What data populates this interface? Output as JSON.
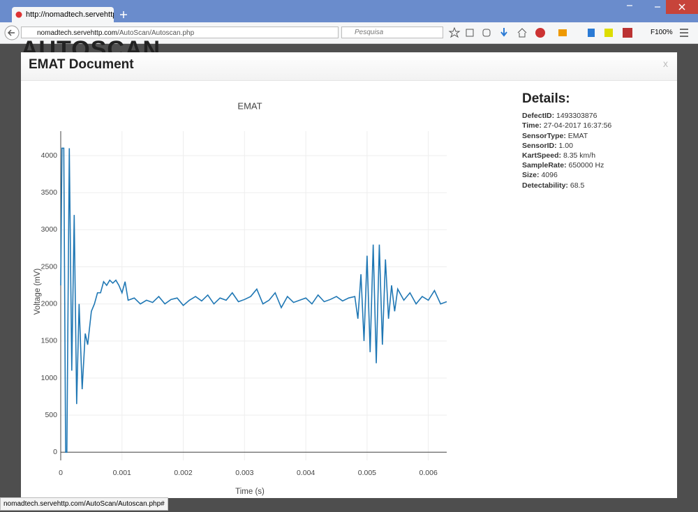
{
  "browser": {
    "tab_title": "http://nomadtech.servehttp.c",
    "url_host": "nomadtech.servehttp.com",
    "url_path": "/AutoScan/Autoscan.php",
    "search_placeholder": "Pesquisa",
    "zoom": "F100%",
    "status": "nomadtech.servehttp.com/AutoScan/Autoscan.php#"
  },
  "background": {
    "logo": "AUTOSCAN"
  },
  "modal": {
    "title": "EMAT Document",
    "close": "x"
  },
  "chart_data": {
    "type": "line",
    "title": "EMAT",
    "x_label": "Time (s)",
    "y_label": "Voltage (mV)",
    "color": "#1f77b4",
    "grid": true,
    "xlim": [
      0,
      0.0063
    ],
    "ylim": [
      -110,
      4330
    ],
    "xticks": [
      0,
      0.001,
      0.002,
      0.003,
      0.004,
      0.005,
      0.006
    ],
    "yticks": [
      0,
      500,
      1000,
      1500,
      2000,
      2500,
      3000,
      3500,
      4000
    ],
    "x": [
      0,
      2e-05,
      5e-05,
      8e-05,
      0.0001,
      0.00014,
      0.00018,
      0.00022,
      0.00026,
      0.0003,
      0.00035,
      0.0004,
      0.00044,
      0.0005,
      0.00055,
      0.0006,
      0.00065,
      0.0007,
      0.00075,
      0.0008,
      0.00085,
      0.0009,
      0.00095,
      0.001,
      0.00105,
      0.0011,
      0.0012,
      0.0013,
      0.0014,
      0.0015,
      0.0016,
      0.0017,
      0.0018,
      0.0019,
      0.002,
      0.0021,
      0.0022,
      0.0023,
      0.0024,
      0.0025,
      0.0026,
      0.0027,
      0.0028,
      0.0029,
      0.003,
      0.0031,
      0.0032,
      0.0033,
      0.0034,
      0.0035,
      0.0036,
      0.0037,
      0.0038,
      0.0039,
      0.004,
      0.0041,
      0.0042,
      0.0043,
      0.0044,
      0.0045,
      0.0046,
      0.0047,
      0.0048,
      0.00485,
      0.0049,
      0.00495,
      0.005,
      0.00505,
      0.0051,
      0.00515,
      0.0052,
      0.00525,
      0.0053,
      0.00535,
      0.0054,
      0.00545,
      0.0055,
      0.0056,
      0.0057,
      0.0058,
      0.0059,
      0.006,
      0.0061,
      0.0062,
      0.0063
    ],
    "values": [
      2250,
      4100,
      4100,
      0,
      0,
      4100,
      1100,
      3200,
      650,
      2000,
      850,
      1600,
      1450,
      1900,
      2000,
      2150,
      2150,
      2300,
      2250,
      2320,
      2280,
      2320,
      2250,
      2150,
      2300,
      2050,
      2080,
      2000,
      2050,
      2020,
      2100,
      2000,
      2060,
      2080,
      1980,
      2050,
      2100,
      2040,
      2120,
      2000,
      2080,
      2050,
      2150,
      2030,
      2060,
      2100,
      2200,
      2000,
      2050,
      2150,
      1950,
      2100,
      2020,
      2050,
      2080,
      2000,
      2120,
      2030,
      2060,
      2100,
      2040,
      2080,
      2100,
      1800,
      2400,
      1500,
      2650,
      1350,
      2800,
      1200,
      2800,
      1450,
      2600,
      1800,
      2250,
      1900,
      2200,
      2050,
      2150,
      2000,
      2100,
      2050,
      2180,
      2000,
      2030
    ]
  },
  "details": {
    "heading": "Details:",
    "items": [
      {
        "label": "DefectID:",
        "value": "1493303876"
      },
      {
        "label": "Time:",
        "value": "27-04-2017 16:37:56"
      },
      {
        "label": "SensorType:",
        "value": "EMAT"
      },
      {
        "label": "SensorID:",
        "value": "1.00"
      },
      {
        "label": "KartSpeed:",
        "value": "8.35 km/h"
      },
      {
        "label": "SampleRate:",
        "value": "650000 Hz"
      },
      {
        "label": "Size:",
        "value": "4096"
      },
      {
        "label": "Detectability:",
        "value": "68.5"
      }
    ]
  }
}
